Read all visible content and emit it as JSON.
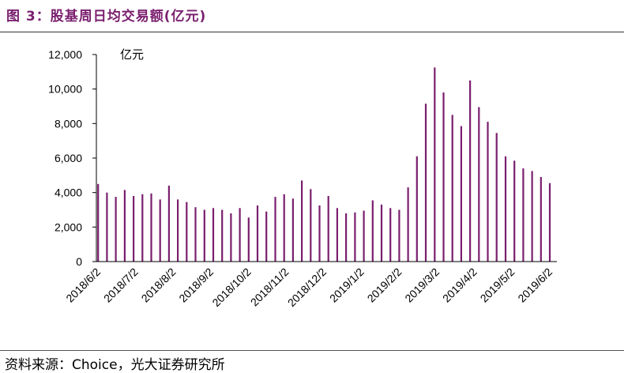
{
  "title": "图 3：股基周日均交易额(亿元)",
  "source": "资料来源：Choice，光大证券研究所",
  "chart_data": {
    "type": "bar",
    "ylabel": "亿元",
    "ylim": [
      0,
      12000
    ],
    "yticks": [
      0,
      2000,
      4000,
      6000,
      8000,
      10000,
      12000
    ],
    "ytick_labels": [
      "0",
      "2,000",
      "4,000",
      "6,000",
      "8,000",
      "10,000",
      "12,000"
    ],
    "xtick_labels": [
      "2018/6/2",
      "2018/7/2",
      "2018/8/2",
      "2018/9/2",
      "2018/10/2",
      "2018/11/2",
      "2018/12/2",
      "2019/1/2",
      "2019/2/2",
      "2019/3/2",
      "2019/4/2",
      "2019/5/2",
      "2019/6/2"
    ],
    "grid": false,
    "bar_color": "#7a1f6e",
    "values": [
      4500,
      4000,
      3750,
      4150,
      3800,
      3900,
      3950,
      3600,
      4400,
      3600,
      3450,
      3150,
      3000,
      3100,
      3000,
      2800,
      3100,
      2550,
      3250,
      2900,
      3750,
      3900,
      3650,
      4700,
      4200,
      3250,
      3800,
      3100,
      2800,
      2850,
      2950,
      3550,
      3300,
      3100,
      3000,
      4300,
      6100,
      9150,
      11250,
      9800,
      8500,
      7850,
      10500,
      8950,
      8100,
      7450,
      6100,
      5850,
      5400,
      5250,
      4900,
      4550
    ]
  }
}
